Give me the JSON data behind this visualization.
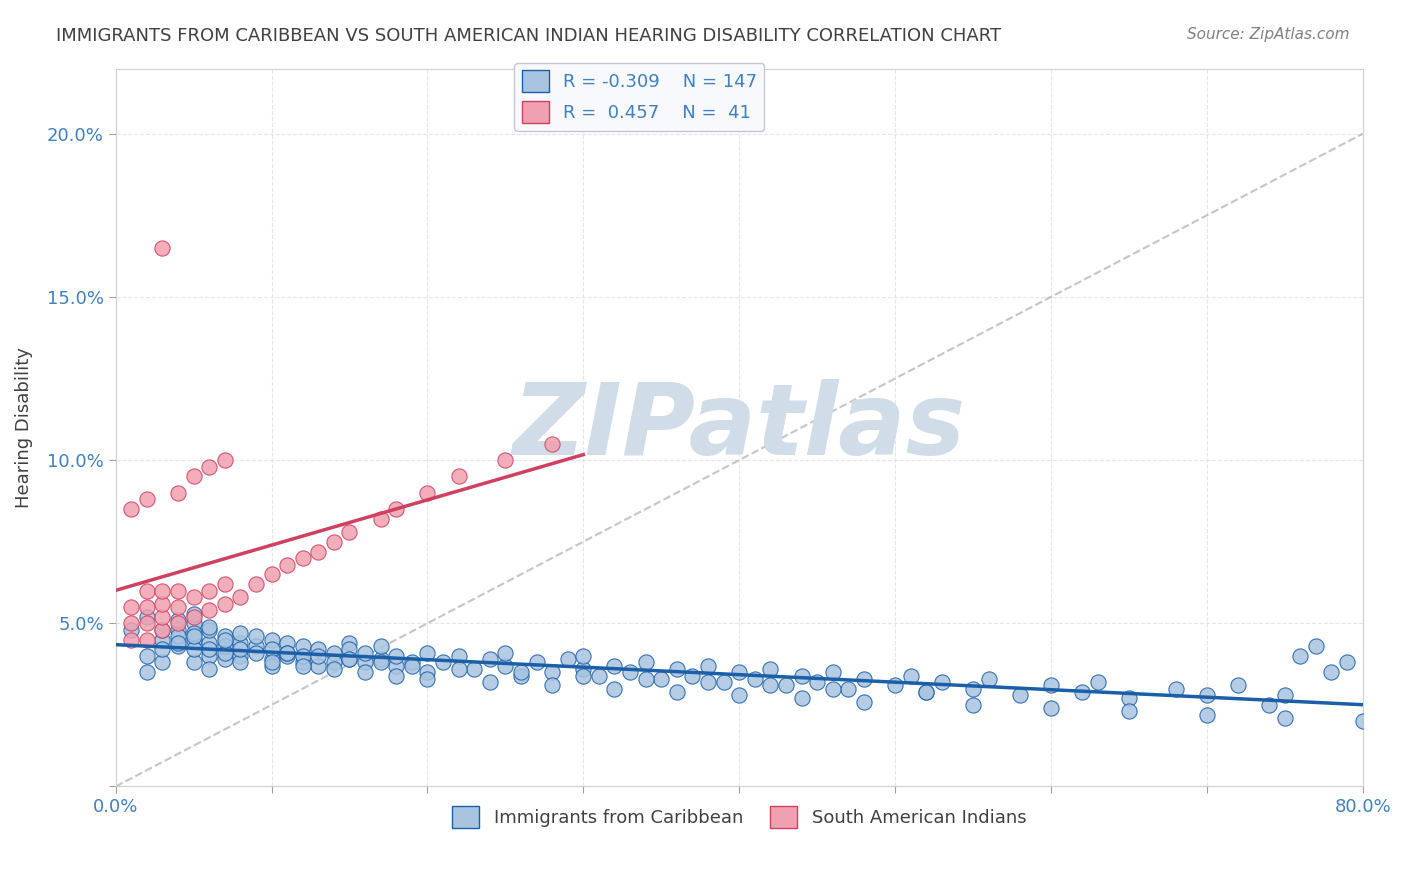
{
  "title": "IMMIGRANTS FROM CARIBBEAN VS SOUTH AMERICAN INDIAN HEARING DISABILITY CORRELATION CHART",
  "source": "Source: ZipAtlas.com",
  "ylabel": "Hearing Disability",
  "xlabel": "",
  "xlim": [
    0.0,
    0.8
  ],
  "ylim": [
    0.0,
    0.22
  ],
  "xticks": [
    0.0,
    0.1,
    0.2,
    0.3,
    0.4,
    0.5,
    0.6,
    0.7,
    0.8
  ],
  "xticklabels": [
    "0.0%",
    "",
    "",
    "",
    "",
    "",
    "",
    "",
    "80.0%"
  ],
  "yticks": [
    0.0,
    0.05,
    0.1,
    0.15,
    0.2
  ],
  "yticklabels": [
    "",
    "5.0%",
    "10.0%",
    "15.0%",
    "20.0%"
  ],
  "blue_R": -0.309,
  "blue_N": 147,
  "pink_R": 0.457,
  "pink_N": 41,
  "blue_color": "#a8c4e0",
  "pink_color": "#f0a0b0",
  "blue_line_color": "#1a5fa8",
  "pink_line_color": "#d04060",
  "watermark_text": "ZIPatlas",
  "watermark_color": "#d0dce8",
  "legend_label_blue": "Immigrants from Caribbean",
  "legend_label_pink": "South American Indians",
  "background_color": "#ffffff",
  "grid_color": "#e0e0e0",
  "title_color": "#404040",
  "axis_label_color": "#4080c0",
  "tick_label_color": "#4080c0",
  "blue_scatter_x": [
    0.01,
    0.02,
    0.02,
    0.03,
    0.03,
    0.03,
    0.04,
    0.04,
    0.04,
    0.04,
    0.05,
    0.05,
    0.05,
    0.05,
    0.05,
    0.06,
    0.06,
    0.06,
    0.06,
    0.06,
    0.07,
    0.07,
    0.07,
    0.07,
    0.08,
    0.08,
    0.08,
    0.08,
    0.09,
    0.09,
    0.1,
    0.1,
    0.1,
    0.1,
    0.11,
    0.11,
    0.11,
    0.12,
    0.12,
    0.12,
    0.13,
    0.13,
    0.14,
    0.14,
    0.15,
    0.15,
    0.15,
    0.16,
    0.16,
    0.17,
    0.17,
    0.18,
    0.18,
    0.19,
    0.2,
    0.2,
    0.21,
    0.22,
    0.23,
    0.24,
    0.25,
    0.25,
    0.26,
    0.27,
    0.28,
    0.29,
    0.3,
    0.3,
    0.31,
    0.32,
    0.33,
    0.34,
    0.35,
    0.36,
    0.37,
    0.38,
    0.39,
    0.4,
    0.41,
    0.42,
    0.43,
    0.44,
    0.45,
    0.46,
    0.47,
    0.48,
    0.5,
    0.51,
    0.52,
    0.53,
    0.55,
    0.56,
    0.58,
    0.6,
    0.62,
    0.63,
    0.65,
    0.68,
    0.7,
    0.72,
    0.74,
    0.75,
    0.02,
    0.03,
    0.04,
    0.05,
    0.05,
    0.06,
    0.07,
    0.08,
    0.09,
    0.1,
    0.11,
    0.12,
    0.13,
    0.14,
    0.15,
    0.16,
    0.17,
    0.18,
    0.19,
    0.2,
    0.22,
    0.24,
    0.26,
    0.28,
    0.3,
    0.32,
    0.34,
    0.36,
    0.38,
    0.4,
    0.42,
    0.44,
    0.46,
    0.48,
    0.52,
    0.55,
    0.6,
    0.65,
    0.7,
    0.75,
    0.76,
    0.77,
    0.78,
    0.79,
    0.8
  ],
  "blue_scatter_y": [
    0.048,
    0.04,
    0.035,
    0.045,
    0.038,
    0.042,
    0.048,
    0.043,
    0.051,
    0.046,
    0.05,
    0.045,
    0.038,
    0.042,
    0.047,
    0.044,
    0.04,
    0.048,
    0.036,
    0.042,
    0.046,
    0.039,
    0.043,
    0.041,
    0.044,
    0.04,
    0.047,
    0.038,
    0.043,
    0.041,
    0.039,
    0.045,
    0.042,
    0.037,
    0.04,
    0.044,
    0.041,
    0.038,
    0.043,
    0.04,
    0.042,
    0.037,
    0.041,
    0.038,
    0.044,
    0.039,
    0.042,
    0.038,
    0.041,
    0.039,
    0.043,
    0.037,
    0.04,
    0.038,
    0.041,
    0.035,
    0.038,
    0.04,
    0.036,
    0.039,
    0.037,
    0.041,
    0.034,
    0.038,
    0.035,
    0.039,
    0.036,
    0.04,
    0.034,
    0.037,
    0.035,
    0.038,
    0.033,
    0.036,
    0.034,
    0.037,
    0.032,
    0.035,
    0.033,
    0.036,
    0.031,
    0.034,
    0.032,
    0.035,
    0.03,
    0.033,
    0.031,
    0.034,
    0.029,
    0.032,
    0.03,
    0.033,
    0.028,
    0.031,
    0.029,
    0.032,
    0.027,
    0.03,
    0.028,
    0.031,
    0.025,
    0.028,
    0.052,
    0.048,
    0.044,
    0.053,
    0.046,
    0.049,
    0.045,
    0.042,
    0.046,
    0.038,
    0.041,
    0.037,
    0.04,
    0.036,
    0.039,
    0.035,
    0.038,
    0.034,
    0.037,
    0.033,
    0.036,
    0.032,
    0.035,
    0.031,
    0.034,
    0.03,
    0.033,
    0.029,
    0.032,
    0.028,
    0.031,
    0.027,
    0.03,
    0.026,
    0.029,
    0.025,
    0.024,
    0.023,
    0.022,
    0.021,
    0.04,
    0.043,
    0.035,
    0.038,
    0.02
  ],
  "pink_scatter_x": [
    0.01,
    0.01,
    0.01,
    0.02,
    0.02,
    0.02,
    0.02,
    0.03,
    0.03,
    0.03,
    0.03,
    0.04,
    0.04,
    0.04,
    0.05,
    0.05,
    0.06,
    0.06,
    0.07,
    0.07,
    0.08,
    0.09,
    0.1,
    0.11,
    0.12,
    0.13,
    0.14,
    0.15,
    0.17,
    0.18,
    0.2,
    0.22,
    0.25,
    0.28,
    0.01,
    0.02,
    0.03,
    0.04,
    0.05,
    0.06,
    0.07
  ],
  "pink_scatter_y": [
    0.045,
    0.05,
    0.055,
    0.045,
    0.05,
    0.055,
    0.06,
    0.048,
    0.052,
    0.056,
    0.06,
    0.05,
    0.055,
    0.06,
    0.052,
    0.058,
    0.054,
    0.06,
    0.056,
    0.062,
    0.058,
    0.062,
    0.065,
    0.068,
    0.07,
    0.072,
    0.075,
    0.078,
    0.082,
    0.085,
    0.09,
    0.095,
    0.1,
    0.105,
    0.085,
    0.088,
    0.165,
    0.09,
    0.095,
    0.098,
    0.1
  ]
}
